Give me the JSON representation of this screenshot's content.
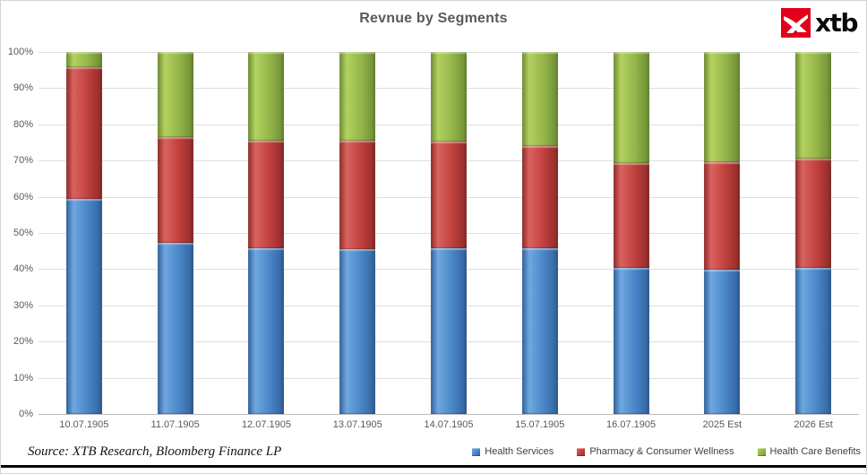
{
  "header": {
    "title": "Revnue by Segments",
    "logo_text": "xtb",
    "logo_color": "#e2001a"
  },
  "footer": {
    "source": "Source: XTB Research, Bloomberg Finance LP"
  },
  "chart_data": {
    "type": "bar",
    "variant": "stacked-100-percent",
    "title": "Revnue by Segments",
    "categories": [
      "10.07.1905",
      "11.07.1905",
      "12.07.1905",
      "13.07.1905",
      "14.07.1905",
      "15.07.1905",
      "16.07.1905",
      "2025 Est",
      "2026 Est"
    ],
    "series": [
      {
        "name": "Health Services",
        "values": [
          59.3,
          47.3,
          45.8,
          45.6,
          45.8,
          45.7,
          40.3,
          39.8,
          40.4
        ],
        "color": "#4a86c8",
        "color_light": "#6fa7e0",
        "color_dark": "#30619b"
      },
      {
        "name": "Pharmacy & Consumer Wellness",
        "values": [
          36.6,
          29.2,
          29.6,
          29.8,
          29.4,
          28.3,
          29.1,
          29.7,
          30.2
        ],
        "color": "#c0403d",
        "color_light": "#d96360",
        "color_dark": "#8f2b29"
      },
      {
        "name": "Health Care Benefits",
        "values": [
          4.1,
          23.5,
          24.6,
          24.6,
          24.8,
          26.0,
          30.6,
          30.5,
          29.4
        ],
        "color": "#94b64a",
        "color_light": "#b2d160",
        "color_dark": "#6d8c33"
      }
    ],
    "y_ticks": [
      "0%",
      "10%",
      "20%",
      "30%",
      "40%",
      "50%",
      "60%",
      "70%",
      "80%",
      "90%",
      "100%"
    ],
    "ylim": [
      0,
      100
    ],
    "xlabel": "",
    "ylabel": "",
    "grid": true,
    "legend_position": "bottom-right"
  }
}
